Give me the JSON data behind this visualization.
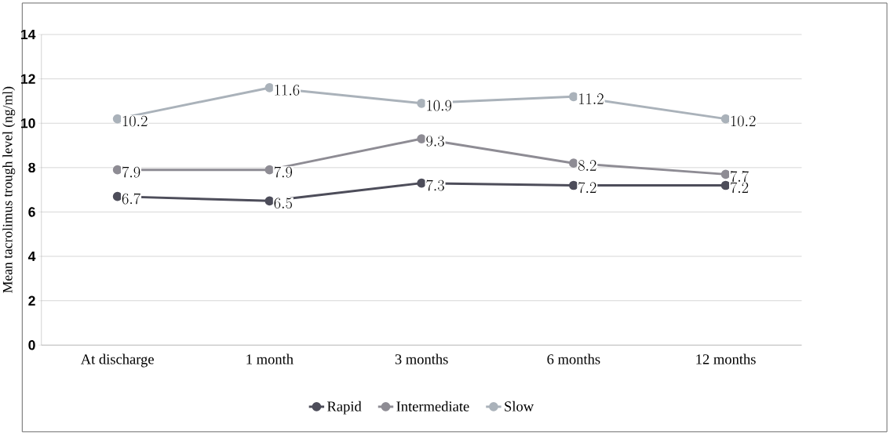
{
  "chart_data": {
    "type": "line",
    "ylabel": "Mean tacrolimus trough level (ng/ml)",
    "categories": [
      "At discharge",
      "1 month",
      "3 months",
      "6 months",
      "12 months"
    ],
    "series": [
      {
        "name": "Rapid",
        "color": "#4d4d5a",
        "values": [
          6.7,
          6.5,
          7.3,
          7.2,
          7.2
        ]
      },
      {
        "name": "Intermediate",
        "color": "#8e8c94",
        "values": [
          7.9,
          7.9,
          9.3,
          8.2,
          7.7
        ]
      },
      {
        "name": "Slow",
        "color": "#aab2ba",
        "values": [
          10.2,
          11.6,
          10.9,
          11.2,
          10.2
        ]
      }
    ],
    "ylim": [
      0,
      14
    ],
    "yticks": [
      0,
      2,
      4,
      6,
      8,
      10,
      12,
      14
    ],
    "grid": "y",
    "legend": "bottom",
    "marker": "circle",
    "line_style": "solid",
    "data_labels": true
  }
}
